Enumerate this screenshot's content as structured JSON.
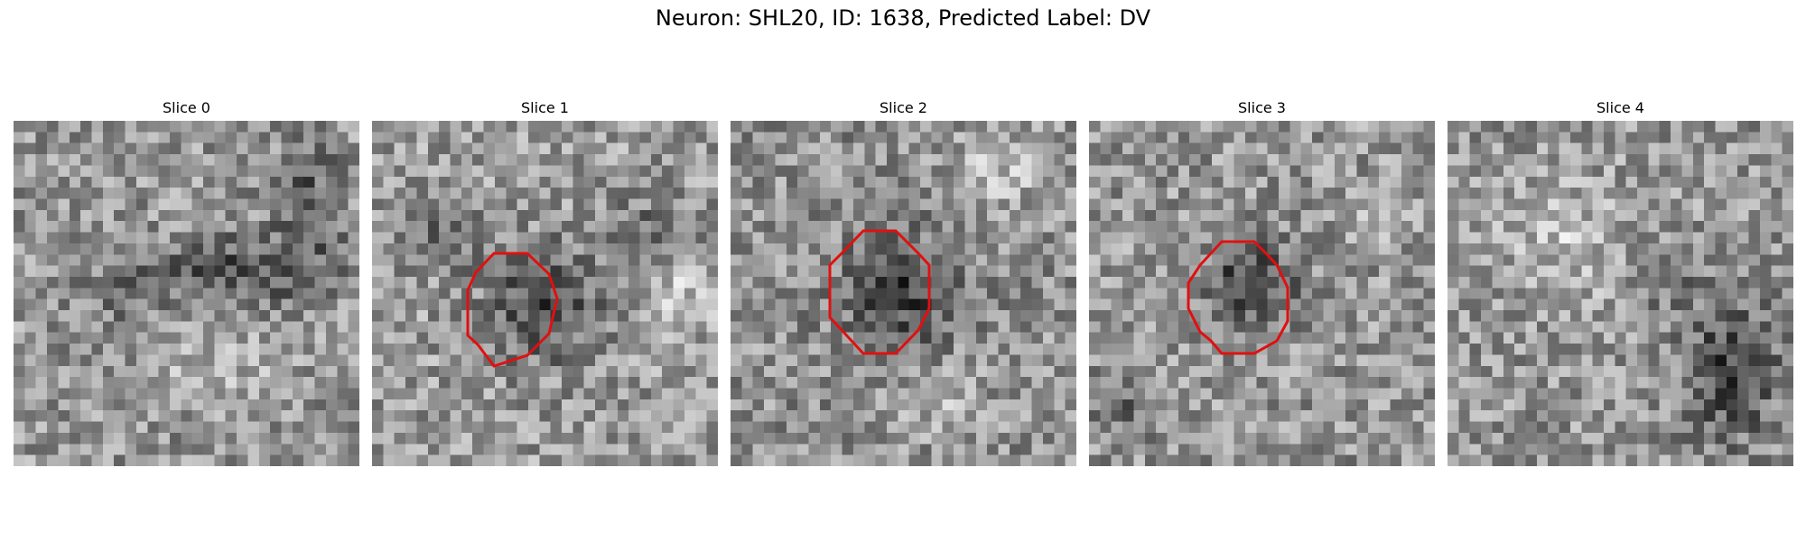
{
  "figure": {
    "title": "Neuron: SHL20, ID: 1638, Predicted Label: DV"
  },
  "slices": [
    {
      "label": "Slice 0",
      "has_roi": false
    },
    {
      "label": "Slice 1",
      "has_roi": true
    },
    {
      "label": "Slice 2",
      "has_roi": true
    },
    {
      "label": "Slice 3",
      "has_roi": true
    },
    {
      "label": "Slice 4",
      "has_roi": false
    }
  ],
  "colors": {
    "roi_outline": "#e01010",
    "background": "#ffffff"
  },
  "colormap": "grayscale"
}
